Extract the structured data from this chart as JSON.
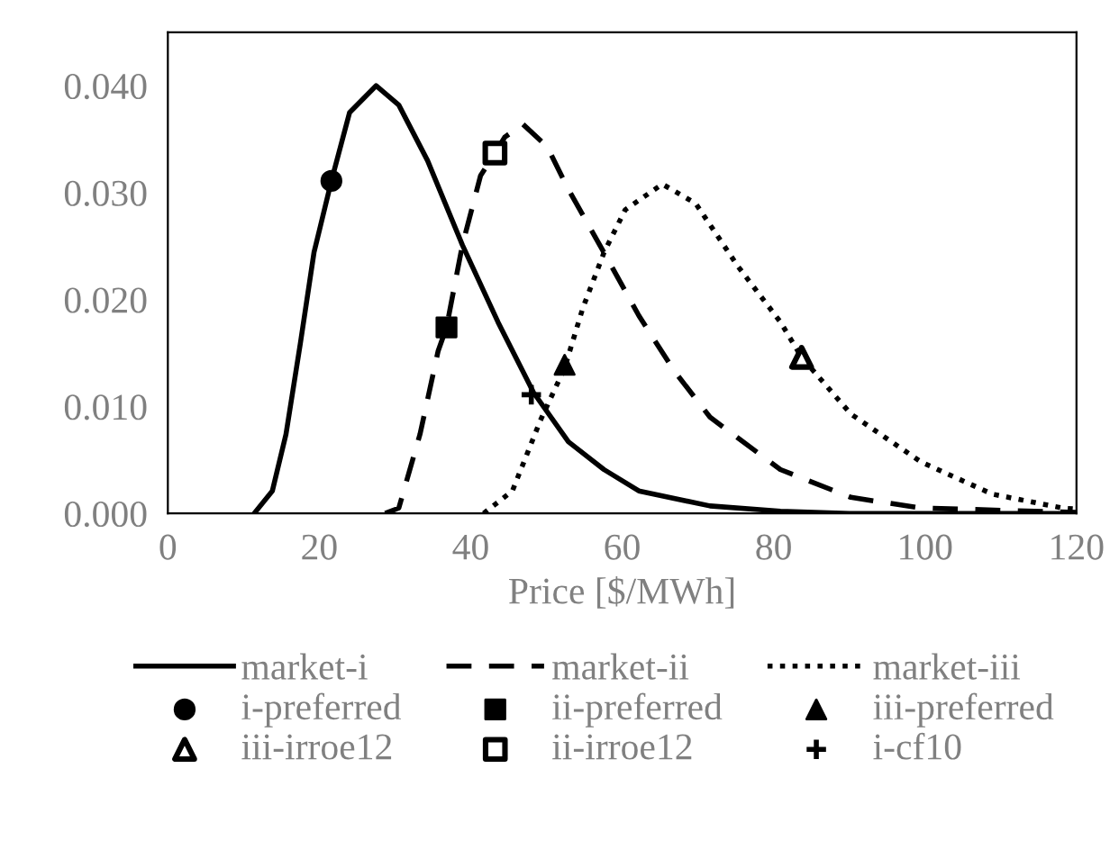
{
  "chart_data": {
    "type": "line",
    "xlabel": "Price [$/MWh]",
    "xlim": [
      0,
      120
    ],
    "xticks": [
      0,
      20,
      40,
      60,
      80,
      100,
      120
    ],
    "ylim": [
      0,
      0.045
    ],
    "yticks": [
      {
        "value": 0,
        "label": "0.000"
      },
      {
        "value": 0.01,
        "label": "0.010"
      },
      {
        "value": 0.02,
        "label": "0.020"
      },
      {
        "value": 0.03,
        "label": "0.030"
      },
      {
        "value": 0.04,
        "label": "0.040"
      }
    ],
    "grid": false,
    "legend": "bottom",
    "series": [
      {
        "name": "market-i",
        "line_style": "solid",
        "marker": "none",
        "color": "#000000",
        "x": [
          11.4,
          13.8,
          15.6,
          17.5,
          19.3,
          21.6,
          24.0,
          27.5,
          30.5,
          34.3,
          38.9,
          43.6,
          48.3,
          52.9,
          57.6,
          62.2,
          71.6,
          80.9,
          90,
          120
        ],
        "values": [
          0,
          0.0021,
          0.0074,
          0.0159,
          0.0244,
          0.0311,
          0.0375,
          0.04,
          0.0382,
          0.033,
          0.0251,
          0.0179,
          0.0113,
          0.0067,
          0.0041,
          0.0021,
          0.0007,
          0.0002,
          0,
          0
        ]
      },
      {
        "name": "market-ii",
        "line_style": "dashed",
        "marker": "none",
        "color": "#000000",
        "x": [
          28.7,
          30.5,
          33.3,
          35.7,
          36.8,
          38.9,
          41.3,
          43.2,
          44.5,
          46.9,
          50.1,
          52.9,
          57.6,
          62.2,
          66.9,
          71.6,
          80.9,
          90.2,
          99.5,
          120
        ],
        "values": [
          0,
          0.0005,
          0.0074,
          0.0152,
          0.0174,
          0.0251,
          0.0316,
          0.0337,
          0.0352,
          0.0364,
          0.0343,
          0.0303,
          0.0244,
          0.0185,
          0.0133,
          0.009,
          0.0041,
          0.0015,
          0.0005,
          0.0001
        ]
      },
      {
        "name": "market-iii",
        "line_style": "dotted",
        "marker": "none",
        "color": "#000000",
        "x": [
          41.7,
          45.5,
          49.2,
          52.4,
          54.8,
          57.6,
          60.4,
          65.3,
          69.7,
          75.3,
          80.9,
          83.7,
          90.2,
          99.5,
          108.9,
          118.2,
          120
        ],
        "values": [
          0,
          0.0021,
          0.0087,
          0.0136,
          0.0192,
          0.0244,
          0.0284,
          0.0308,
          0.029,
          0.0231,
          0.0179,
          0.0146,
          0.0093,
          0.0048,
          0.0018,
          0.0005,
          0.0004
        ]
      },
      {
        "name": "i-preferred",
        "type": "scatter",
        "marker": "circle",
        "color": "#000000",
        "x": [
          21.6
        ],
        "values": [
          0.0311
        ]
      },
      {
        "name": "ii-preferred",
        "type": "scatter",
        "marker": "square",
        "color": "#000000",
        "x": [
          36.8
        ],
        "values": [
          0.0174
        ]
      },
      {
        "name": "iii-preferred",
        "type": "scatter",
        "marker": "triangle",
        "color": "#000000",
        "x": [
          52.4
        ],
        "values": [
          0.0139
        ]
      },
      {
        "name": "iii-irroe12",
        "type": "scatter",
        "marker": "triangle-open",
        "color": "#000000",
        "x": [
          83.7
        ],
        "values": [
          0.0146
        ]
      },
      {
        "name": "ii-irroe12",
        "type": "scatter",
        "marker": "square-open",
        "color": "#000000",
        "x": [
          43.2
        ],
        "values": [
          0.0337
        ]
      },
      {
        "name": "i-cf10",
        "type": "scatter",
        "marker": "cross",
        "color": "#000000",
        "x": [
          48.0
        ],
        "values": [
          0.0111
        ]
      }
    ]
  }
}
